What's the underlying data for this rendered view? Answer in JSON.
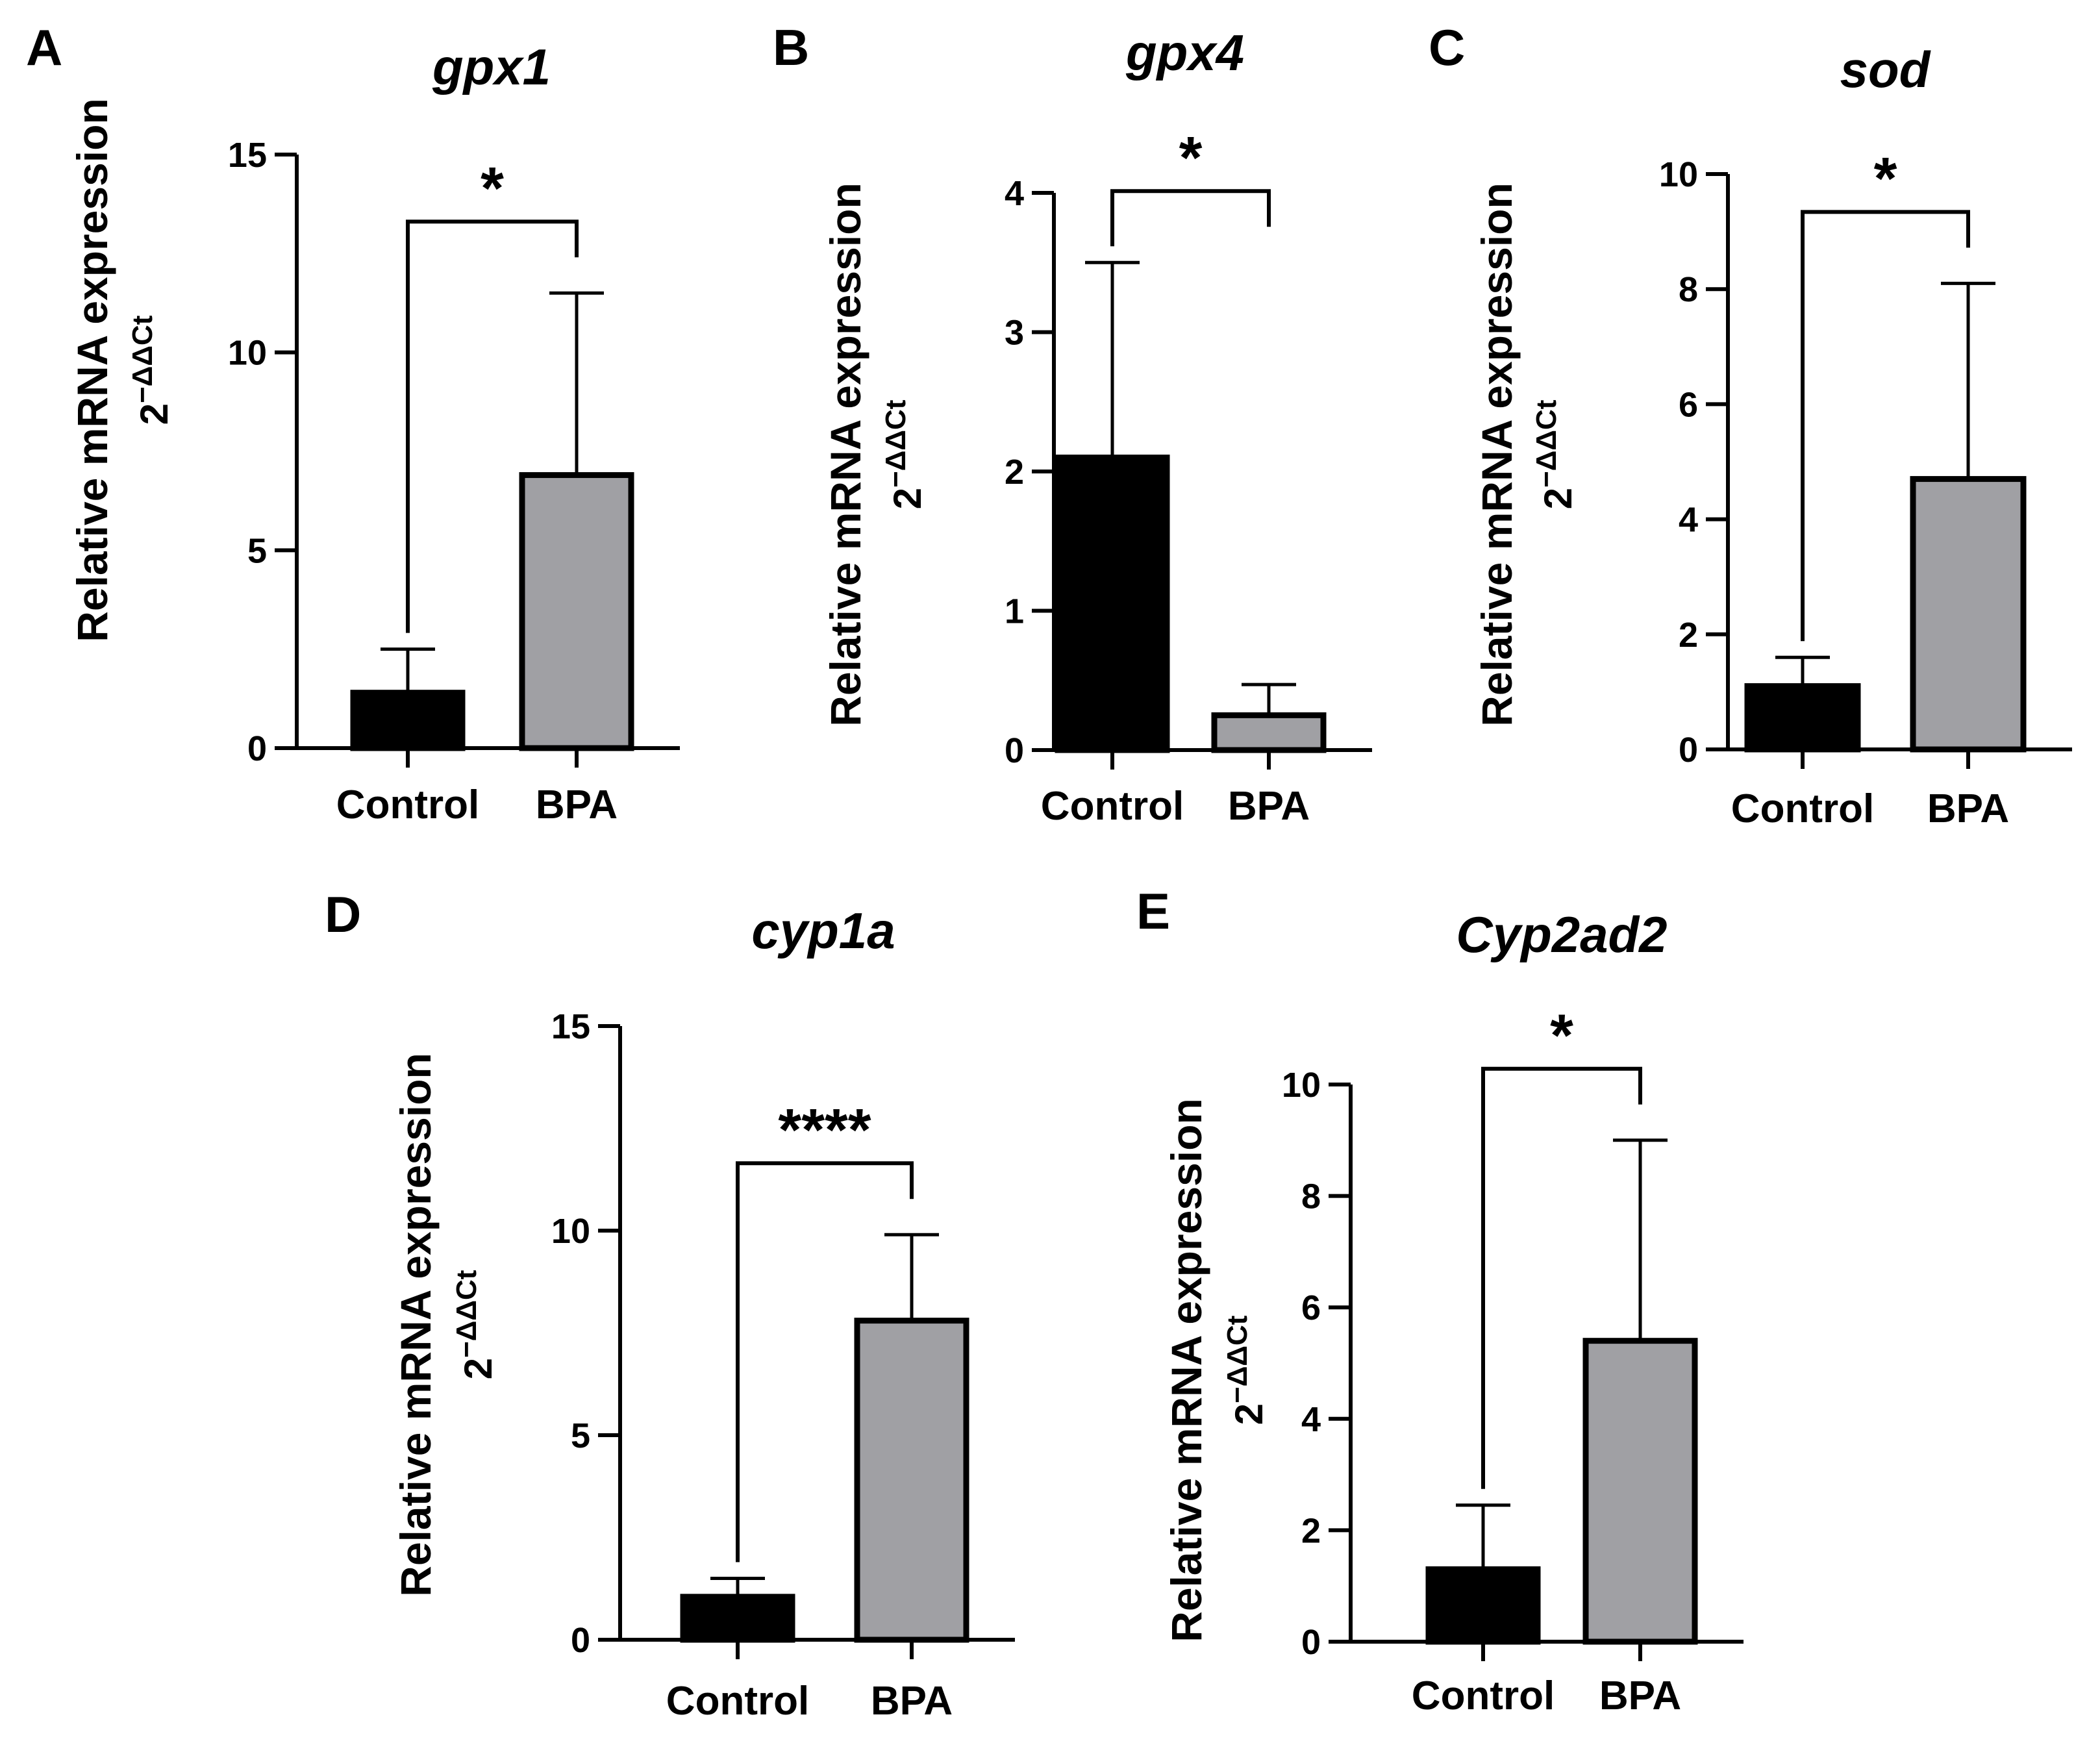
{
  "chart_data": [
    {
      "panel": "A",
      "type": "bar",
      "title": "gpx1",
      "ylabel": "Relative mRNA expression",
      "ylabel_sub_base": "2",
      "ylabel_sub_exp": "−ΔΔCt",
      "categories": [
        "Control",
        "BPA"
      ],
      "values": [
        1.4,
        6.9
      ],
      "errors": [
        1.1,
        4.6
      ],
      "ylim": [
        0,
        15
      ],
      "yticks": [
        0,
        5,
        10,
        15
      ],
      "significance": "*",
      "bar_colors": [
        "#000000",
        "#a0a0a4"
      ]
    },
    {
      "panel": "B",
      "type": "bar",
      "title": "gpx4",
      "ylabel": "Relative mRNA expression",
      "ylabel_sub_base": "2",
      "ylabel_sub_exp": "−ΔΔCt",
      "categories": [
        "Control",
        "BPA"
      ],
      "values": [
        2.1,
        0.25
      ],
      "errors": [
        1.4,
        0.22
      ],
      "ylim": [
        0,
        4
      ],
      "yticks": [
        0,
        1,
        2,
        3,
        4
      ],
      "significance": "*",
      "bar_colors": [
        "#000000",
        "#a0a0a4"
      ]
    },
    {
      "panel": "C",
      "type": "bar",
      "title": "sod",
      "ylabel": "Relative mRNA expression",
      "ylabel_sub_base": "2",
      "ylabel_sub_exp": "−ΔΔCt",
      "categories": [
        "Control",
        "BPA"
      ],
      "values": [
        1.1,
        4.7
      ],
      "errors": [
        0.5,
        3.4
      ],
      "ylim": [
        0,
        10
      ],
      "yticks": [
        0,
        2,
        4,
        6,
        8,
        10
      ],
      "significance": "*",
      "bar_colors": [
        "#000000",
        "#a0a0a4"
      ]
    },
    {
      "panel": "D",
      "type": "bar",
      "title": "cyp1a",
      "ylabel": "Relative mRNA expression",
      "ylabel_sub_base": "2",
      "ylabel_sub_exp": "−ΔΔCt",
      "categories": [
        "Control",
        "BPA"
      ],
      "values": [
        1.05,
        7.8
      ],
      "errors": [
        0.45,
        2.1
      ],
      "ylim": [
        0,
        15
      ],
      "yticks": [
        0,
        5,
        10,
        15
      ],
      "significance": "****",
      "bar_colors": [
        "#000000",
        "#a0a0a4"
      ]
    },
    {
      "panel": "E",
      "type": "bar",
      "title": "Cyp2ad2",
      "ylabel": "Relative mRNA expression",
      "ylabel_sub_base": "2",
      "ylabel_sub_exp": "−ΔΔCt",
      "categories": [
        "Control",
        "BPA"
      ],
      "values": [
        1.3,
        5.4
      ],
      "errors": [
        1.15,
        3.6
      ],
      "ylim": [
        0,
        10
      ],
      "yticks": [
        0,
        2,
        4,
        6,
        8,
        10
      ],
      "significance": "*",
      "bar_colors": [
        "#000000",
        "#a0a0a4"
      ]
    }
  ]
}
